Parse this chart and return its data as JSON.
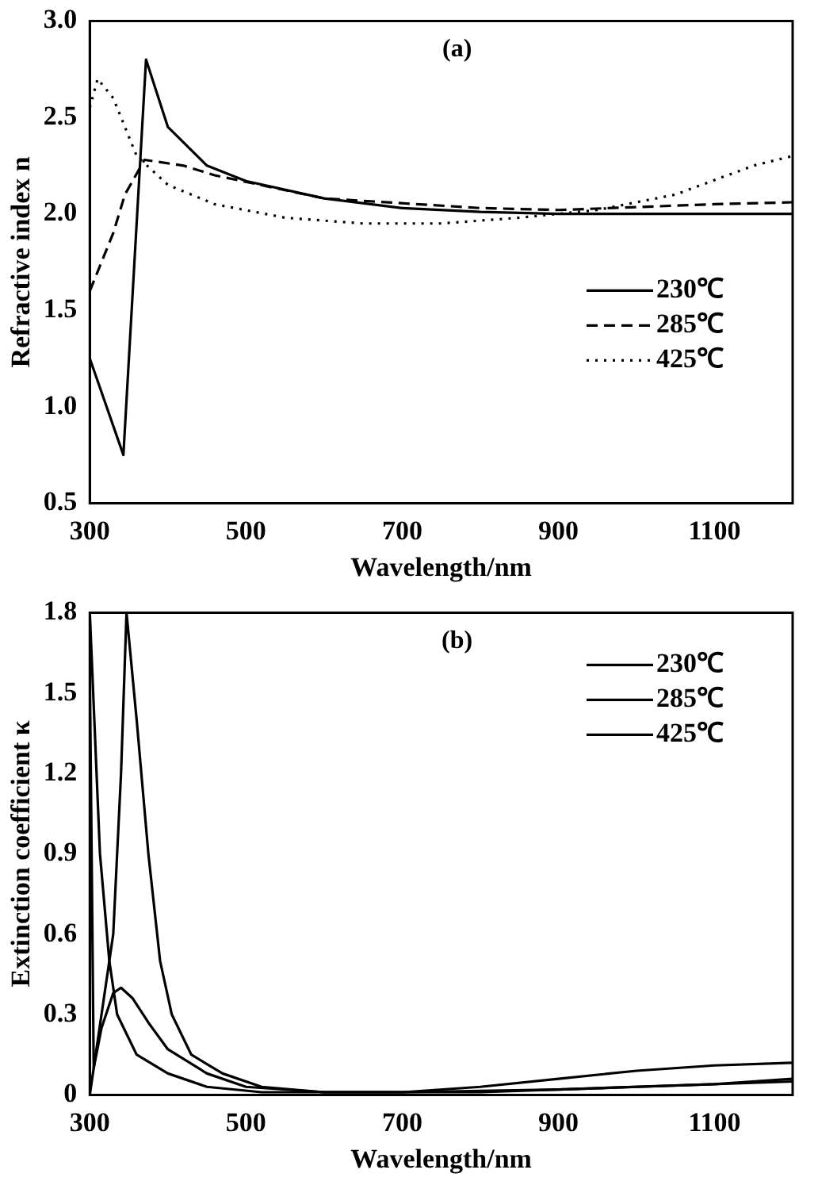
{
  "chart_data": [
    {
      "type": "line",
      "title": "(a)",
      "xlabel": "Wavelength/nm",
      "ylabel": "Refractive index n",
      "xlim": [
        300,
        1200
      ],
      "xticks": [
        300,
        500,
        700,
        900,
        1100
      ],
      "ylim": [
        0.5,
        3.0
      ],
      "yticks": [
        {
          "value": 0.5,
          "label": "0.5"
        },
        {
          "value": 1.0,
          "label": "1.0"
        },
        {
          "value": 1.5,
          "label": "1.5"
        },
        {
          "value": 2.0,
          "label": "2.0"
        },
        {
          "value": 2.5,
          "label": "2.5"
        },
        {
          "value": 3.0,
          "label": "3.0"
        }
      ],
      "grid": false,
      "legend": "right",
      "marker": "none",
      "series": [
        {
          "name": "230℃",
          "color": "#000000",
          "line_style": "solid",
          "x": [
            300,
            343,
            372,
            400,
            450,
            500,
            600,
            700,
            800,
            900,
            1200
          ],
          "values": [
            1.25,
            0.75,
            2.8,
            2.45,
            2.25,
            2.17,
            2.08,
            2.03,
            2.01,
            2.0,
            2.0
          ]
        },
        {
          "name": "285℃",
          "color": "#000000",
          "line_style": "dashed",
          "x": [
            300,
            310,
            330,
            345,
            370,
            420,
            460,
            600,
            800,
            900,
            1100,
            1200
          ],
          "values": [
            1.6,
            1.7,
            1.9,
            2.1,
            2.28,
            2.25,
            2.2,
            2.08,
            2.03,
            2.02,
            2.05,
            2.06
          ]
        },
        {
          "name": "425℃",
          "color": "#000000",
          "line_style": "dotted",
          "x": [
            300,
            310,
            330,
            345,
            360,
            400,
            460,
            550,
            650,
            750,
            850,
            950,
            1050,
            1150,
            1200
          ],
          "values": [
            2.55,
            2.7,
            2.6,
            2.45,
            2.3,
            2.15,
            2.05,
            1.98,
            1.95,
            1.95,
            1.98,
            2.02,
            2.1,
            2.25,
            2.3
          ]
        }
      ]
    },
    {
      "type": "line",
      "title": "(b)",
      "xlabel": "Wavelength/nm",
      "ylabel": "Extinction coefficient κ",
      "xlim": [
        300,
        1200
      ],
      "xticks": [
        300,
        500,
        700,
        900,
        1100
      ],
      "ylim": [
        0,
        1.8
      ],
      "yticks": [
        0,
        0.3,
        0.6,
        0.9,
        1.2,
        1.5,
        1.8
      ],
      "grid": false,
      "legend": "top right",
      "marker": "none",
      "line_style": "solid",
      "series": [
        {
          "name": "230℃",
          "color": "#000000",
          "x": [
            300,
            315,
            330,
            340,
            347,
            360,
            375,
            390,
            405,
            430,
            470,
            520,
            600,
            700,
            800,
            900,
            1000,
            1100,
            1200
          ],
          "values": [
            0,
            0.3,
            0.6,
            1.2,
            1.8,
            1.4,
            0.9,
            0.5,
            0.3,
            0.15,
            0.08,
            0.03,
            0.01,
            0.01,
            0.03,
            0.06,
            0.09,
            0.11,
            0.12
          ]
        },
        {
          "name": "285℃",
          "color": "#000000",
          "x": [
            300,
            305,
            315,
            330,
            340,
            355,
            375,
            400,
            450,
            500,
            600,
            800,
            1000,
            1200
          ],
          "values": [
            1.6,
            0.1,
            0.25,
            0.38,
            0.4,
            0.36,
            0.27,
            0.17,
            0.08,
            0.03,
            0.01,
            0.01,
            0.03,
            0.05
          ]
        },
        {
          "name": "425℃",
          "color": "#000000",
          "x": [
            300,
            313,
            325,
            335,
            360,
            400,
            450,
            520,
            700,
            900,
            1100,
            1200
          ],
          "values": [
            1.8,
            0.9,
            0.5,
            0.3,
            0.15,
            0.08,
            0.03,
            0.01,
            0.01,
            0.02,
            0.04,
            0.06
          ]
        }
      ]
    }
  ]
}
